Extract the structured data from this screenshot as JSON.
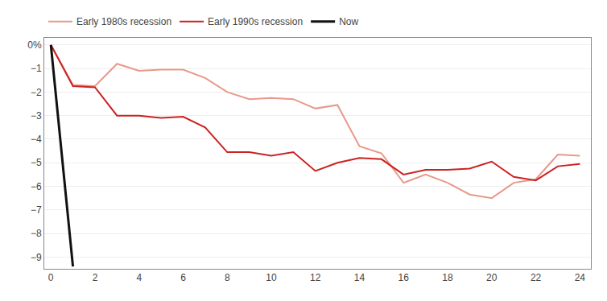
{
  "chart_data": {
    "type": "line",
    "series": [
      {
        "name": "Early 1980s recession",
        "color": "#e8998a",
        "x": [
          0,
          1,
          2,
          3,
          4,
          5,
          6,
          7,
          8,
          9,
          10,
          11,
          12,
          13,
          14,
          15,
          16,
          17,
          18,
          19,
          20,
          21,
          22,
          23,
          24
        ],
        "values": [
          0,
          -1.7,
          -1.75,
          -0.8,
          -1.1,
          -1.05,
          -1.05,
          -1.4,
          -2.0,
          -2.3,
          -2.25,
          -2.3,
          -2.7,
          -2.55,
          -4.3,
          -4.6,
          -5.85,
          -5.5,
          -5.85,
          -6.35,
          -6.5,
          -5.85,
          -5.7,
          -4.65,
          -4.7
        ]
      },
      {
        "name": "Early 1990s recession",
        "color": "#cc2222",
        "x": [
          0,
          1,
          2,
          3,
          4,
          5,
          6,
          7,
          8,
          9,
          10,
          11,
          12,
          13,
          14,
          15,
          16,
          17,
          18,
          19,
          20,
          21,
          22,
          23,
          24
        ],
        "values": [
          0,
          -1.75,
          -1.8,
          -3.0,
          -3.0,
          -3.1,
          -3.05,
          -3.5,
          -4.55,
          -4.55,
          -4.7,
          -4.55,
          -5.35,
          -5.0,
          -4.8,
          -4.85,
          -5.5,
          -5.3,
          -5.3,
          -5.25,
          -4.95,
          -5.6,
          -5.75,
          -5.15,
          -5.05
        ]
      },
      {
        "name": "Now",
        "color": "#111111",
        "x": [
          0,
          1
        ],
        "values": [
          0,
          -9.4
        ]
      }
    ],
    "xlim": [
      -0.3,
      24.5
    ],
    "xticks": [
      0,
      2,
      4,
      6,
      8,
      10,
      12,
      14,
      16,
      18,
      20,
      22,
      24
    ],
    "ylim": [
      -9.5,
      0.3
    ],
    "yticks": [
      {
        "value": 0,
        "label": "0%"
      },
      {
        "value": -1,
        "label": "−1"
      },
      {
        "value": -2,
        "label": "−2"
      },
      {
        "value": -3,
        "label": "−3"
      },
      {
        "value": -4,
        "label": "−4"
      },
      {
        "value": -5,
        "label": "−5"
      },
      {
        "value": -6,
        "label": "−6"
      },
      {
        "value": -7,
        "label": "−7"
      },
      {
        "value": -8,
        "label": "−8"
      },
      {
        "value": -9,
        "label": "−9"
      }
    ],
    "grid": true,
    "legend": "upper left"
  }
}
